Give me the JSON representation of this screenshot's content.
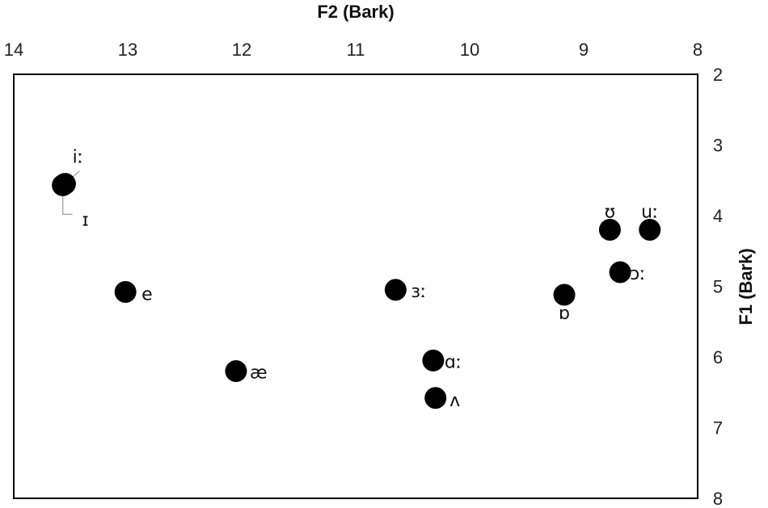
{
  "chart_data": {
    "type": "scatter",
    "xlabel": "F2 (Bark)",
    "ylabel": "F1 (Bark)",
    "xlim": [
      14,
      8
    ],
    "ylim": [
      2,
      8
    ],
    "x_reversed": true,
    "y_reversed": true,
    "x_axis_position": "top",
    "y_axis_position": "right",
    "xticks": [
      "14",
      "13",
      "12",
      "11",
      "10",
      "9",
      "8"
    ],
    "yticks": [
      "2",
      "3",
      "4",
      "5",
      "6",
      "7",
      "8"
    ],
    "grid": false,
    "marker_color": "#000000",
    "points": [
      {
        "label": "iː",
        "x": 13.55,
        "y": 3.55
      },
      {
        "label": "ɪ",
        "x": 13.57,
        "y": 3.57
      },
      {
        "label": "e",
        "x": 13.02,
        "y": 5.08
      },
      {
        "label": "æ",
        "x": 12.05,
        "y": 6.2
      },
      {
        "label": "ɜː",
        "x": 10.65,
        "y": 5.05
      },
      {
        "label": "ɑː",
        "x": 10.32,
        "y": 6.05
      },
      {
        "label": "ʌ",
        "x": 10.3,
        "y": 6.58
      },
      {
        "label": "ɒ",
        "x": 9.17,
        "y": 5.12
      },
      {
        "label": "ʊ",
        "x": 8.77,
        "y": 4.2
      },
      {
        "label": "uː",
        "x": 8.42,
        "y": 4.2
      },
      {
        "label": "ɔː",
        "x": 8.68,
        "y": 4.8
      }
    ]
  }
}
